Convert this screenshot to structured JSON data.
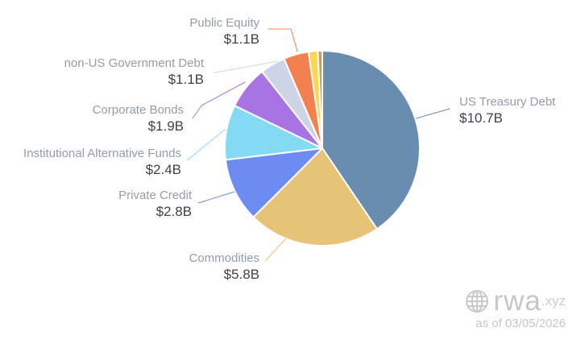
{
  "chart_data": {
    "type": "pie",
    "title": "",
    "unit": "USD billions",
    "direction": "clockwise",
    "start_angle_deg": 0,
    "legend_position": "callout-labels",
    "slices": [
      {
        "label": "US Treasury Debt",
        "value": 10.7,
        "value_text": "$10.7B",
        "color": "#688db0"
      },
      {
        "label": "Commodities",
        "value": 5.8,
        "value_text": "$5.8B",
        "color": "#e7c377"
      },
      {
        "label": "Private Credit",
        "value": 2.8,
        "value_text": "$2.8B",
        "color": "#6d8cf2"
      },
      {
        "label": "Institutional Alternative Funds",
        "value": 2.4,
        "value_text": "$2.4B",
        "color": "#82dbf2"
      },
      {
        "label": "Corporate Bonds",
        "value": 1.9,
        "value_text": "$1.9B",
        "color": "#a873e2"
      },
      {
        "label": "non-US Government Debt",
        "value": 1.1,
        "value_text": "$1.1B",
        "color": "#cdd4e6"
      },
      {
        "label": "Public Equity",
        "value": 1.1,
        "value_text": "$1.1B",
        "color": "#f3804f"
      },
      {
        "label": "",
        "value": 0.4,
        "value_text": "",
        "color": "#f9d84f"
      },
      {
        "label": "",
        "value": 0.2,
        "value_text": "",
        "color": "#d09c66"
      }
    ],
    "label_name_color": "#939cab",
    "label_value_color": "#3d424e"
  },
  "watermark": {
    "brand": "rwa",
    "tld": ".xyz",
    "as_of": "as of 03/05/2026",
    "color": "#c8c8c8"
  }
}
